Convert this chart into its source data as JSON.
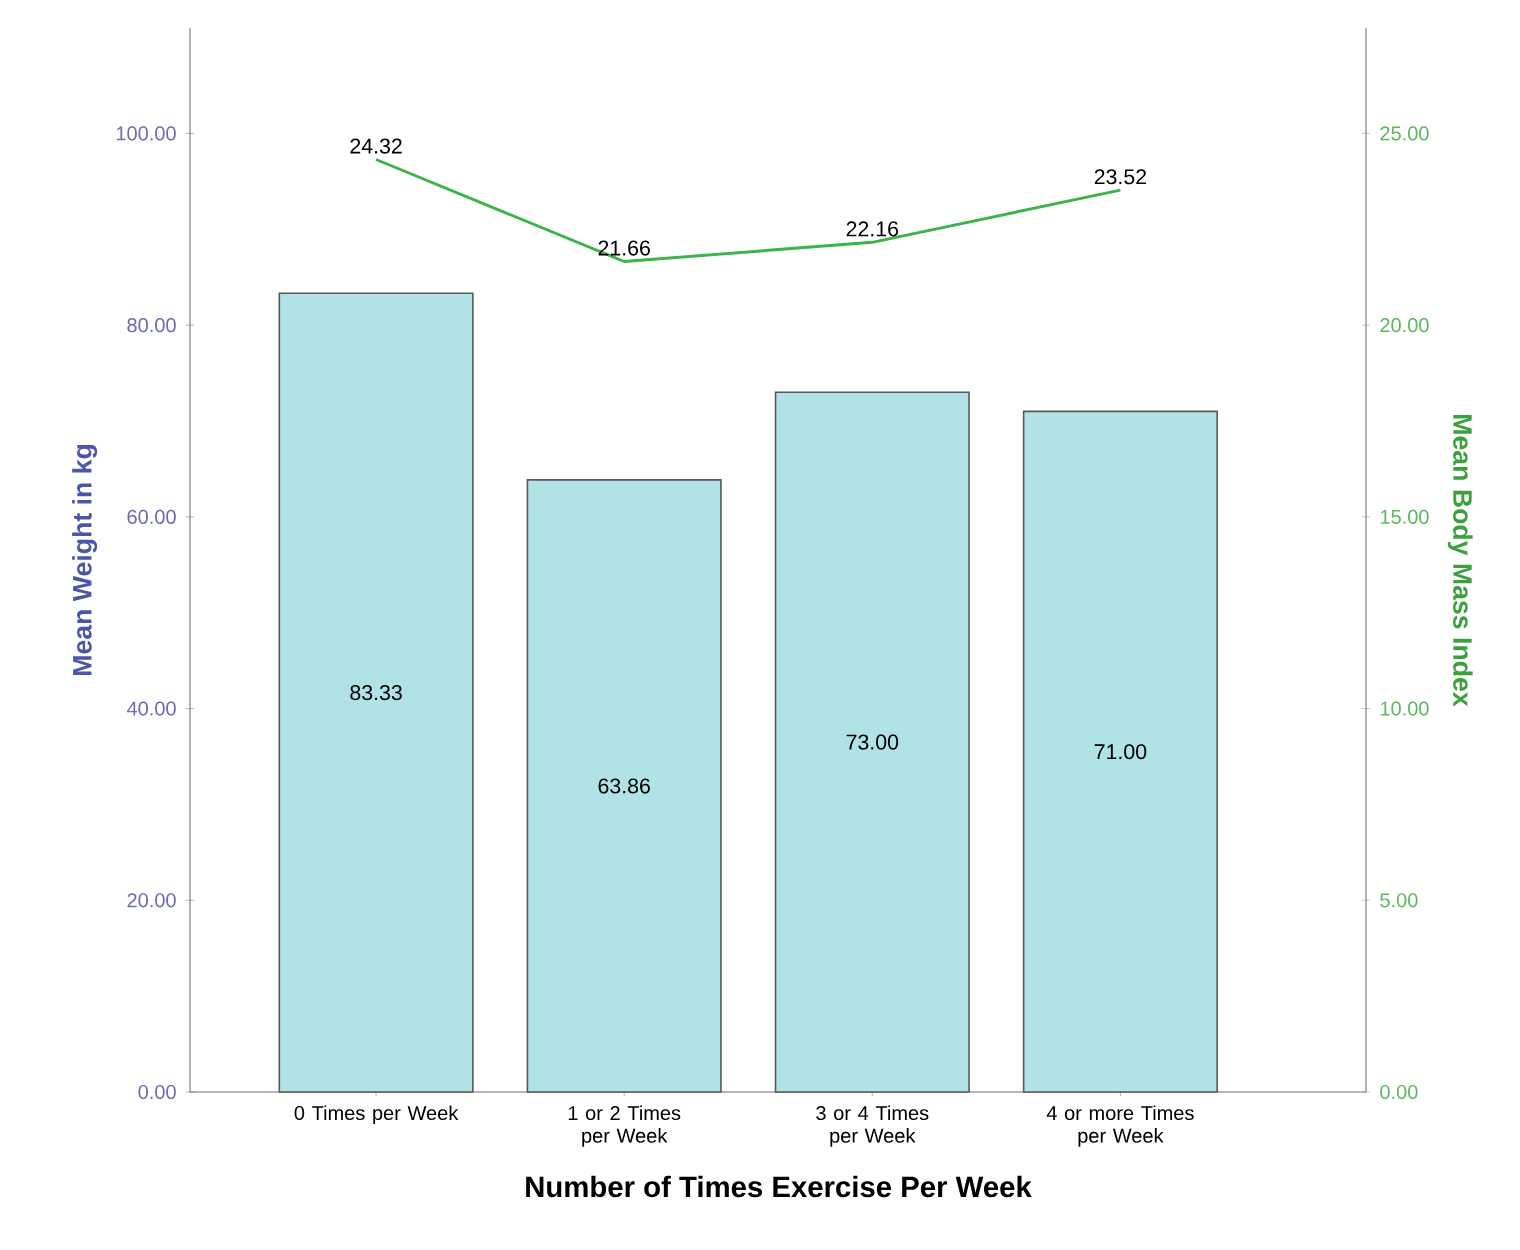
{
  "chart_data": {
    "type": "bar",
    "xlabel": "Number of Times Exercise Per Week",
    "ylabel": "Mean Weight in kg",
    "y2label": "Mean Body Mass Index",
    "categories": [
      "0 Times per Week",
      "1 or 2 Times per Week",
      "3 or 4 Times per Week",
      "4 or more Times per Week"
    ],
    "series": [
      {
        "color": "#b0e2e6",
        "values": [
          83.33,
          63.86,
          73.0,
          71.0
        ],
        "value_labels": [
          "83.33",
          "63.86",
          "73.00",
          "71.00"
        ]
      },
      {
        "type": "line",
        "axis": "y2",
        "color": "#3cb44b",
        "values": [
          24.32,
          21.66,
          22.16,
          23.52
        ],
        "value_labels": [
          "24.32",
          "21.66",
          "22.16",
          "23.52"
        ]
      }
    ],
    "ylim": [
      0,
      111
    ],
    "yticks": [
      {
        "value": 0,
        "label": "0.00"
      },
      {
        "value": 20,
        "label": "20.00"
      },
      {
        "value": 40,
        "label": "40.00"
      },
      {
        "value": 60,
        "label": "60.00"
      },
      {
        "value": 80,
        "label": "80.00"
      },
      {
        "value": 100,
        "label": "100.00"
      }
    ],
    "y2lim": [
      0,
      27.75
    ],
    "y2ticks": [
      {
        "value": 0,
        "label": "0.00"
      },
      {
        "value": 5,
        "label": "5.00"
      },
      {
        "value": 10,
        "label": "10.00"
      },
      {
        "value": 15,
        "label": "15.00"
      },
      {
        "value": 20,
        "label": "20.00"
      },
      {
        "value": 25,
        "label": "25.00"
      }
    ]
  }
}
